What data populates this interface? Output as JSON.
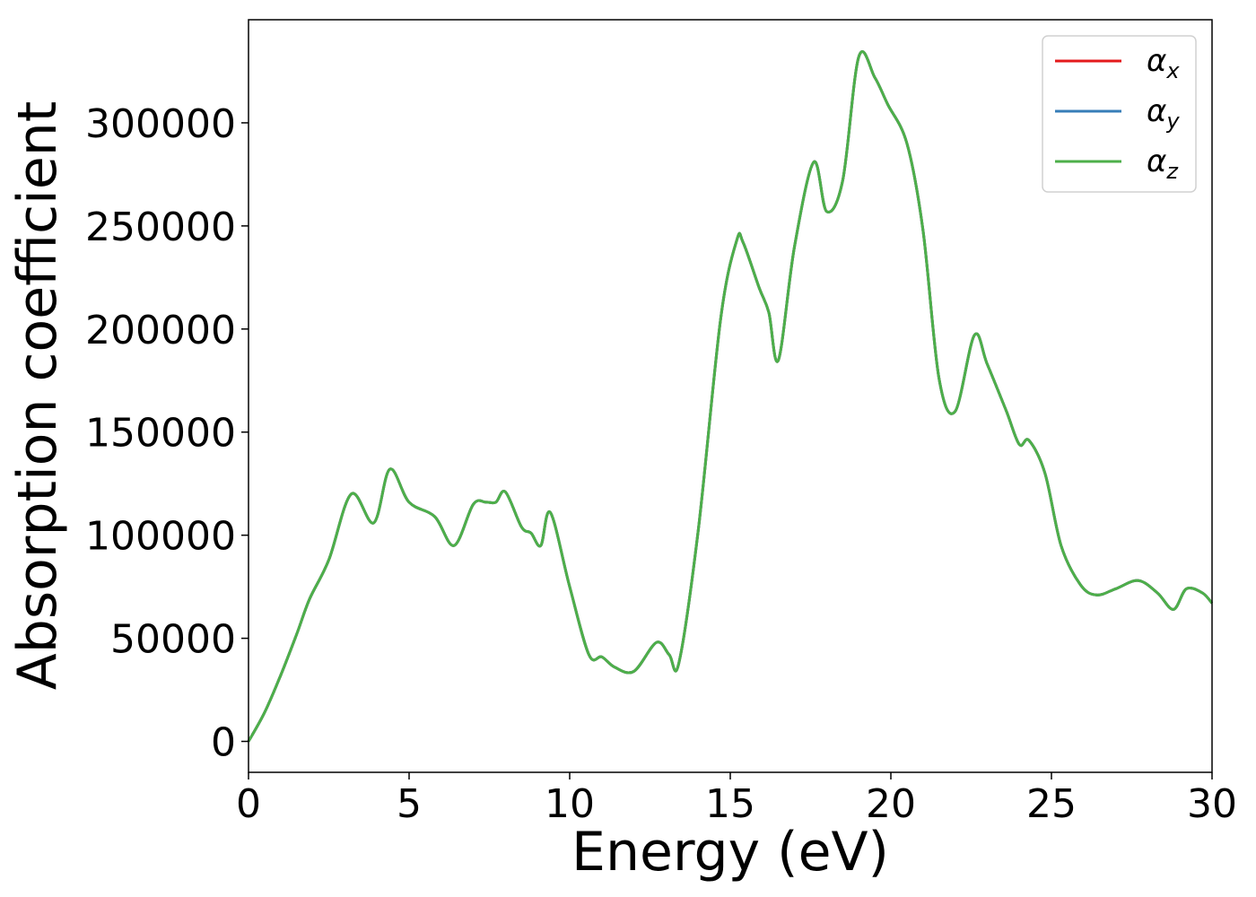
{
  "chart_data": {
    "type": "line",
    "title": "",
    "xlabel": "Energy (eV)",
    "ylabel": "Absorption coefficient",
    "xlim": [
      0,
      30
    ],
    "ylim": [
      -15000,
      350000
    ],
    "x_ticks": [
      "0",
      "5",
      "10",
      "15",
      "20",
      "25",
      "30"
    ],
    "y_ticks": [
      "0",
      "50000",
      "100000",
      "150000",
      "200000",
      "250000",
      "300000"
    ],
    "grid": false,
    "legend_position": "top-right",
    "series": [
      {
        "name": "αx",
        "symbol": "α",
        "subscript": "x",
        "color": "#e41a1c"
      },
      {
        "name": "αy",
        "symbol": "α",
        "subscript": "y",
        "color": "#377eb8"
      },
      {
        "name": "αz",
        "symbol": "α",
        "subscript": "z",
        "color": "#4daf4a"
      }
    ],
    "x": [
      0,
      0.5,
      1.0,
      1.5,
      1.9,
      2.5,
      3.2,
      3.9,
      4.4,
      5.0,
      5.8,
      6.4,
      7.0,
      7.4,
      7.7,
      8.0,
      8.5,
      8.8,
      9.1,
      9.4,
      10.0,
      10.6,
      11.0,
      11.4,
      12.0,
      12.7,
      13.1,
      13.4,
      14.0,
      14.7,
      15.2,
      15.4,
      15.9,
      16.2,
      16.5,
      17.0,
      17.6,
      18.0,
      18.5,
      19.0,
      19.5,
      19.9,
      20.5,
      21.0,
      21.5,
      22.0,
      22.6,
      23.0,
      23.6,
      24.0,
      24.3,
      24.8,
      25.3,
      25.9,
      26.4,
      27.0,
      27.7,
      28.3,
      28.8,
      29.2,
      29.7,
      30.0
    ],
    "y": [
      0,
      14000,
      32000,
      52000,
      69000,
      88000,
      120000,
      106000,
      132000,
      116000,
      109000,
      95000,
      115000,
      116000,
      116000,
      121000,
      104000,
      101000,
      95000,
      111000,
      75000,
      42000,
      41000,
      36000,
      34000,
      48000,
      42000,
      38000,
      102000,
      205000,
      243000,
      242000,
      220000,
      208000,
      185000,
      240000,
      281000,
      257000,
      272000,
      332000,
      322000,
      309000,
      290000,
      248000,
      176000,
      160000,
      197000,
      183000,
      160000,
      144000,
      146000,
      130000,
      95000,
      76000,
      71000,
      74000,
      78000,
      72000,
      64000,
      74000,
      72000,
      67000
    ]
  }
}
